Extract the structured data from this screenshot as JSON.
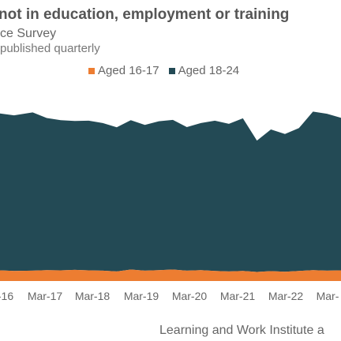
{
  "header": {
    "title": "not in education, employment or training",
    "subtitle": "ce Survey",
    "note": "published quarterly"
  },
  "colors": {
    "aged_16_17": "#ed7d31",
    "aged_18_24": "#234a55",
    "axis_text": "#666666"
  },
  "footer": {
    "credit": "Learning and Work Institute a"
  },
  "chart_data": {
    "type": "area",
    "stacked": true,
    "categories": [
      "-16",
      "Mar-17",
      "Mar-18",
      "Mar-19",
      "Mar-20",
      "Mar-21",
      "Mar-22",
      "Mar-"
    ],
    "series": [
      {
        "name": "Aged 16-17",
        "color": "#ed7d31",
        "x": [
          2015.9,
          2016.2,
          2016.6,
          2016.9,
          2017.2,
          2017.5,
          2017.8,
          2018.1,
          2018.4,
          2018.7,
          2019.0,
          2019.3,
          2019.6,
          2019.9,
          2020.2,
          2020.5,
          2020.8,
          2021.1,
          2021.4,
          2021.7,
          2022.0,
          2022.3,
          2022.6,
          2022.9,
          2023.2
        ],
        "values": [
          40,
          38,
          39,
          41,
          40,
          42,
          40,
          39,
          36,
          43,
          39,
          41,
          43,
          39,
          41,
          38,
          36,
          38,
          34,
          37,
          35,
          38,
          41,
          39,
          40
        ]
      },
      {
        "name": "Aged 18-24",
        "color": "#234a55",
        "x": [
          2015.9,
          2016.2,
          2016.6,
          2016.9,
          2017.2,
          2017.5,
          2017.8,
          2018.1,
          2018.4,
          2018.7,
          2019.0,
          2019.3,
          2019.6,
          2019.9,
          2020.2,
          2020.5,
          2020.8,
          2021.1,
          2021.4,
          2021.7,
          2022.0,
          2022.3,
          2022.6,
          2022.9,
          2023.2
        ],
        "values": [
          590,
          585,
          595,
          572,
          565,
          560,
          563,
          555,
          542,
          562,
          548,
          560,
          563,
          540,
          553,
          565,
          555,
          574,
          494,
          533,
          518,
          537,
          596,
          590,
          574
        ]
      }
    ],
    "ylim": [
      0,
      760
    ],
    "legend_position": "top",
    "grid": false
  }
}
